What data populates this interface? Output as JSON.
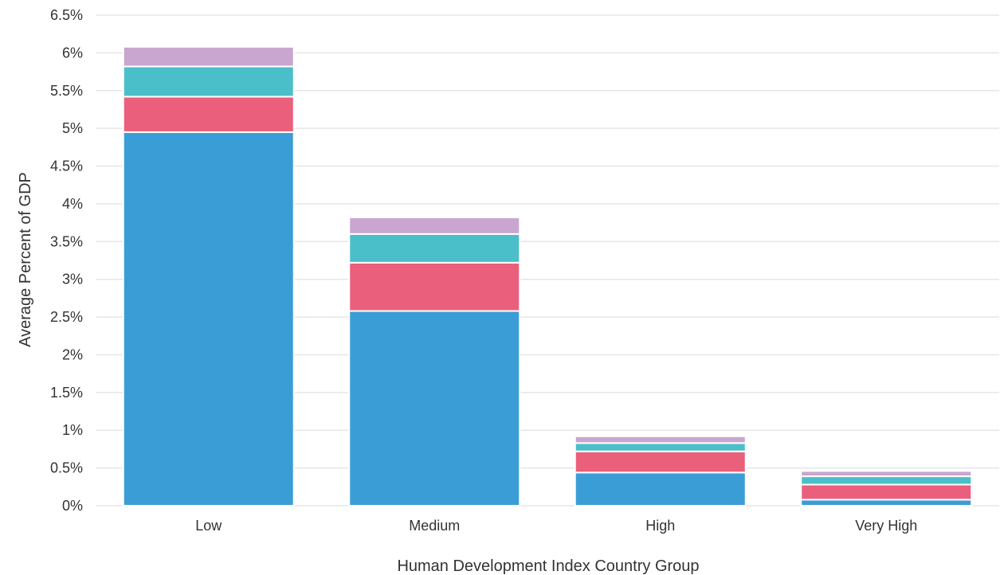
{
  "chart_data": {
    "type": "bar",
    "stacked": true,
    "xlabel": "Human Development Index Country Group",
    "ylabel": "Average Percent of GDP",
    "categories": [
      "Low",
      "Medium",
      "High",
      "Very High"
    ],
    "ylim": [
      0,
      6.5
    ],
    "yticks": [
      {
        "value": 0,
        "label": "0%"
      },
      {
        "value": 0.5,
        "label": "0.5%"
      },
      {
        "value": 1,
        "label": "1%"
      },
      {
        "value": 1.5,
        "label": "1.5%"
      },
      {
        "value": 2,
        "label": "2%"
      },
      {
        "value": 2.5,
        "label": "2.5%"
      },
      {
        "value": 3,
        "label": "3%"
      },
      {
        "value": 3.5,
        "label": "3.5%"
      },
      {
        "value": 4,
        "label": "4%"
      },
      {
        "value": 4.5,
        "label": "4.5%"
      },
      {
        "value": 5,
        "label": "5%"
      },
      {
        "value": 5.5,
        "label": "5.5%"
      },
      {
        "value": 6,
        "label": "6%"
      },
      {
        "value": 6.5,
        "label": "6.5%"
      }
    ],
    "grid": true,
    "series": [
      {
        "color": "#3b9dd6",
        "values": [
          4.95,
          2.58,
          0.44,
          0.08
        ]
      },
      {
        "color": "#ea5f7b",
        "values": [
          0.47,
          0.64,
          0.28,
          0.2
        ]
      },
      {
        "color": "#4bbfc9",
        "values": [
          0.4,
          0.38,
          0.11,
          0.11
        ]
      },
      {
        "color": "#c9a6cf",
        "values": [
          0.26,
          0.22,
          0.09,
          0.07
        ]
      }
    ]
  }
}
